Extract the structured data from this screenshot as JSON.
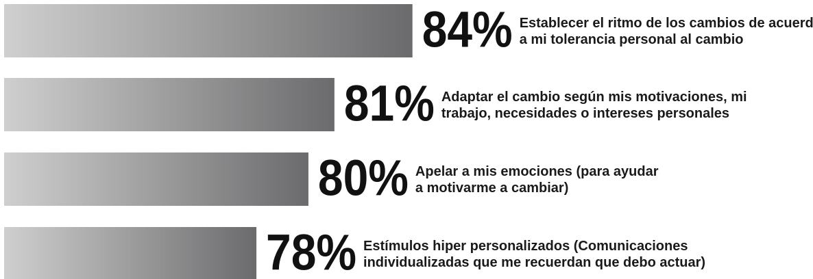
{
  "chart_data": {
    "type": "barh",
    "categories": [
      [
        "Establecer el ritmo de los cambios de acuerdo",
        "a mi tolerancia personal al cambio"
      ],
      [
        "Adaptar el cambio según mis motivaciones, mi",
        "trabajo, necesidades o intereses personales"
      ],
      [
        "Apelar a mis emociones (para ayudar",
        "a motivarme a cambiar)"
      ],
      [
        "Estímulos hiper personalizados (Comunicaciones",
        "individualizadas que me recuerdan que debo actuar)"
      ]
    ],
    "values": [
      84,
      81,
      80,
      78
    ],
    "value_labels": [
      "84%",
      "81%",
      "80%",
      "78%"
    ],
    "xlim": [
      68.3,
      99.4
    ],
    "colors": [
      "#cfcfcf",
      "#6b6b6d"
    ]
  }
}
